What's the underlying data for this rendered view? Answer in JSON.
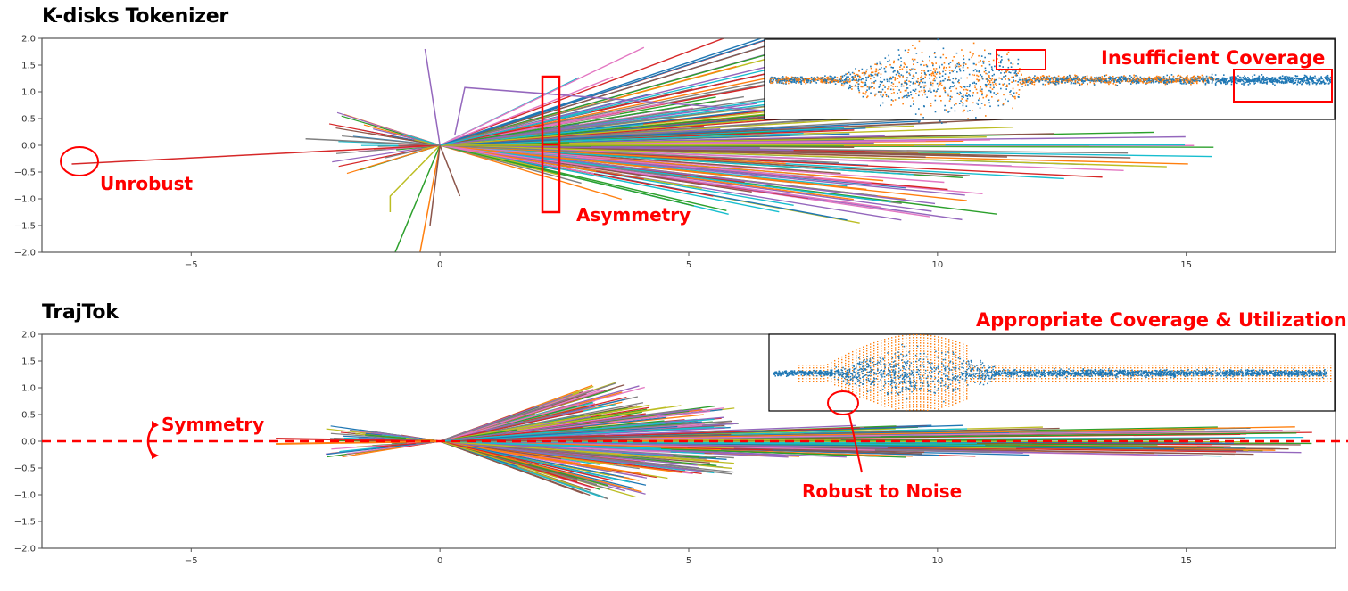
{
  "figure": {
    "panels": [
      {
        "title": "K-disks Tokenizer"
      },
      {
        "title": "TrajTok"
      }
    ]
  },
  "annotations": {
    "unrobust": "Unrobust",
    "asymmetry": "Asymmetry",
    "insufficient": "Insufficient Coverage",
    "symmetry": "Symmetry",
    "appropriate": "Appropriate Coverage & Utilization",
    "robust": "Robust to Noise"
  },
  "colors": {
    "annotation": "#ff0000",
    "scatter_blue": "#1f77b4",
    "scatter_orange": "#ff7f0e",
    "tab10": [
      "#1f77b4",
      "#ff7f0e",
      "#2ca02c",
      "#d62728",
      "#9467bd",
      "#8c564b",
      "#e377c2",
      "#7f7f7f",
      "#bcbd22",
      "#17becf"
    ]
  },
  "chart_data": [
    {
      "type": "line",
      "title": "K-disks Tokenizer",
      "xlabel": "",
      "ylabel": "",
      "xlim": [
        -8,
        18
      ],
      "ylim": [
        -2.0,
        2.0
      ],
      "xticks": [
        -5,
        0,
        5,
        10,
        15
      ],
      "yticks": [
        -2.0,
        -1.5,
        -1.0,
        -0.5,
        0.0,
        0.5,
        1.0,
        1.5,
        2.0
      ],
      "grid": false,
      "description": "Fan of trajectory tokens emanating from origin; asymmetric spread (upper side wider), outlier trajectory extending to x=-7.4,y=-0.35; max x extent ~15.6",
      "fan": {
        "count": 220,
        "max_len": 15.6,
        "upper_angle_max": 0.6,
        "lower_angle_max": 0.35
      },
      "outliers": [
        {
          "x": [
            0,
            -7.4
          ],
          "y": [
            0,
            -0.35
          ],
          "color": "#d62728"
        },
        {
          "x": [
            0,
            -0.3
          ],
          "y": [
            0,
            1.8
          ],
          "color": "#9467bd"
        },
        {
          "x": [
            0.3,
            0.5,
            6.5
          ],
          "y": [
            0.2,
            1.08,
            0.65
          ],
          "color": "#9467bd"
        },
        {
          "x": [
            0,
            -1.0,
            -1.0
          ],
          "y": [
            0,
            -0.95,
            -1.25
          ],
          "color": "#bcbd22"
        },
        {
          "x": [
            0,
            -0.9
          ],
          "y": [
            0,
            -2.0
          ],
          "color": "#2ca02c"
        },
        {
          "x": [
            0,
            -0.4
          ],
          "y": [
            0,
            -2.0
          ],
          "color": "#ff7f0e"
        },
        {
          "x": [
            0,
            -0.2
          ],
          "y": [
            0,
            -1.5
          ],
          "color": "#8c564b"
        },
        {
          "x": [
            0,
            0.4
          ],
          "y": [
            0,
            -0.95
          ],
          "color": "#8c564b"
        },
        {
          "x": [
            0,
            -2.7
          ],
          "y": [
            0,
            0.12
          ],
          "color": "#7f7f7f"
        }
      ],
      "inset": {
        "type": "scatter",
        "series": [
          "tokens (orange)",
          "data (blue)"
        ],
        "note": "orange tokens leave regions uncovered"
      }
    },
    {
      "type": "line",
      "title": "TrajTok",
      "xlabel": "",
      "ylabel": "",
      "xlim": [
        -8,
        18
      ],
      "ylim": [
        -2.0,
        2.0
      ],
      "xticks": [
        -5,
        0,
        5,
        10,
        15
      ],
      "yticks": [
        -2.0,
        -1.5,
        -1.0,
        -0.5,
        0.0,
        0.5,
        1.0,
        1.5,
        2.0
      ],
      "grid": false,
      "description": "Symmetric fan of trajectories about y=0; bulge peak |y|~1.1 near x~2-4; max x extent ~17.6; back-trajectories to x~-3.3; dashed red symmetry line at y=0",
      "fan": {
        "count": 500,
        "max_len": 17.6,
        "back_len": 3.3,
        "peak_y": 1.1
      },
      "symmetry_line_y": 0.0,
      "inset": {
        "type": "scatter",
        "series": [
          "tokens (orange grid)",
          "data (blue)"
        ],
        "note": "orange tokens cover data region evenly"
      }
    }
  ]
}
